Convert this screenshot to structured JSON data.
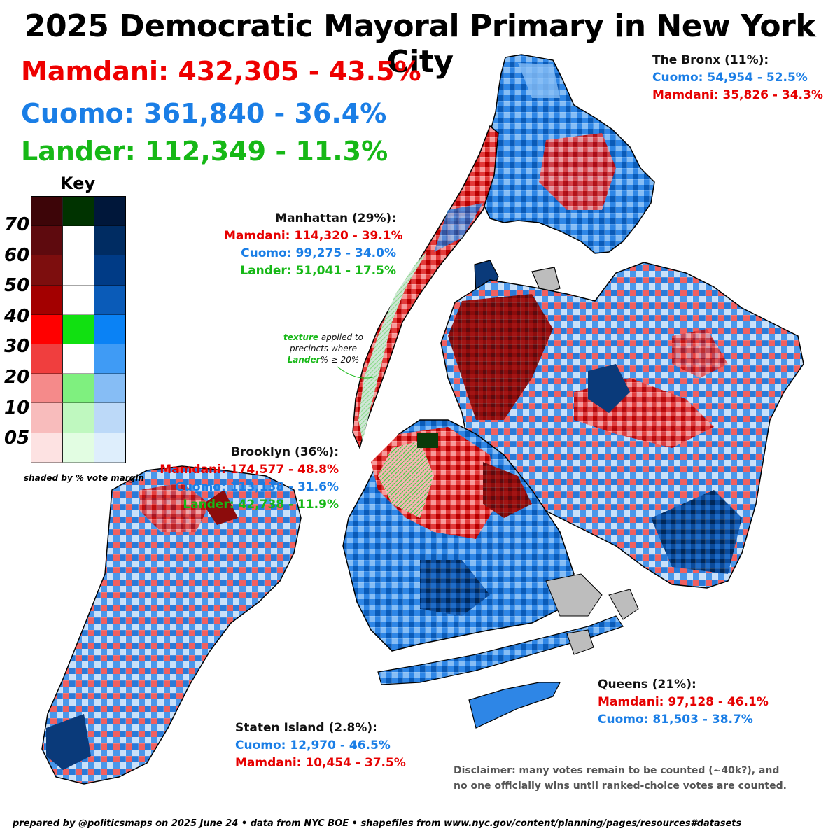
{
  "title": "2025 Democratic Mayoral Primary in New York City",
  "totals": {
    "mamdani": "Mamdani: 432,305 - 43.5%",
    "cuomo": "Cuomo: 361,840 - 36.4%",
    "lander": "Lander: 112,349 - 11.3%"
  },
  "boroughs": {
    "bronx": {
      "name": "The Bronx (11%):",
      "line1": "Cuomo: 54,954 - 52.5%",
      "line2": "Mamdani: 35,826 - 34.3%"
    },
    "manhattan": {
      "name": "Manhattan (29%):",
      "line1": "Mamdani: 114,320 - 39.1%",
      "line2": "Cuomo: 99,275 - 34.0%",
      "line3": "Lander: 51,041 - 17.5%"
    },
    "brooklyn": {
      "name": "Brooklyn (36%):",
      "line1": "Mamdani: 174,577 - 48.8%",
      "line2": "Cuomo: 113,138 - 31.6%",
      "line3": "Lander: 42,738 - 11.9%"
    },
    "queens": {
      "name": "Queens (21%):",
      "line1": "Mamdani: 97,128 - 46.1%",
      "line2": "Cuomo: 81,503 - 38.7%"
    },
    "staten": {
      "name": "Staten Island (2.8%):",
      "line1": "Cuomo: 12,970 - 46.5%",
      "line2": "Mamdani: 10,454 - 37.5%"
    }
  },
  "key": {
    "title": "Key",
    "labels": [
      "70",
      "60",
      "50",
      "40",
      "30",
      "20",
      "10",
      "05"
    ],
    "caption": "shaded by % vote margin",
    "red_scale": [
      "#3d0508",
      "#5e0a0e",
      "#7d0e0e",
      "#a30000",
      "#ff0000",
      "#f03e3e",
      "#f58a8a",
      "#f8bcbc",
      "#fde2e2"
    ],
    "green_scale": [
      "#003300",
      "#ffffff",
      "#ffffff",
      "#ffffff",
      "#11e011",
      "#ffffff",
      "#7ff07f",
      "#bff8bf",
      "#e2fde2"
    ],
    "blue_scale": [
      "#00173a",
      "#002c62",
      "#003b86",
      "#0a5bb8",
      "#0a82f5",
      "#3f9bf5",
      "#86bdf5",
      "#bcd9f8",
      "#deeefc"
    ]
  },
  "annotation": {
    "texture": "texture",
    "line1_rest": " applied to",
    "line2": "precincts where",
    "lander": "Lander",
    "line3_rest": "% ≥ 20%"
  },
  "disclaimer": {
    "line1": "Disclaimer: many votes remain to be counted (~40k?), and",
    "line2": "no one officially wins until ranked-choice votes are counted."
  },
  "credit": "prepared by @politicsmaps on 2025 June 24 • data from NYC BOE • shapefiles from www.nyc.gov/content/planning/pages/resources#datasets"
}
